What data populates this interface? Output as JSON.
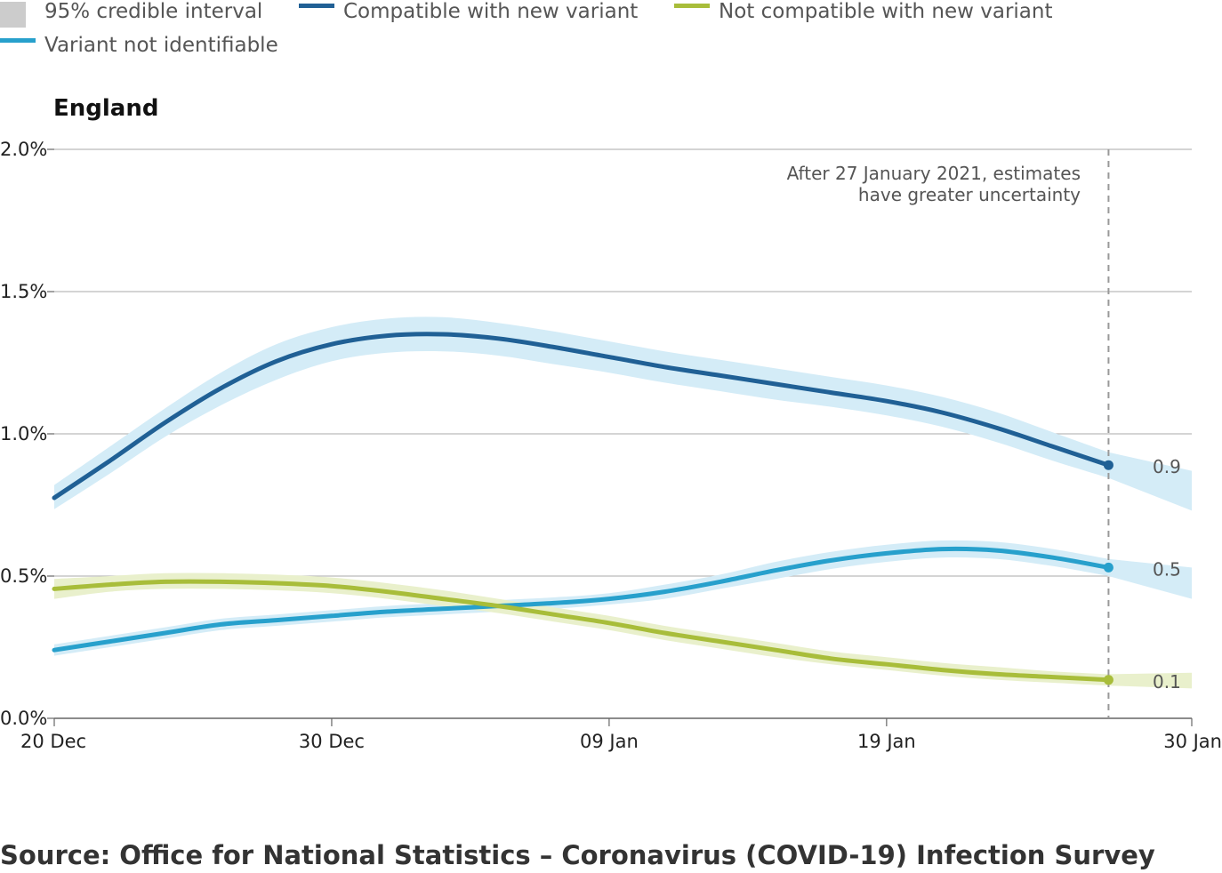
{
  "source": "Source: Office for National Statistics – Coronavirus (COVID-19) Infection Survey",
  "colors": {
    "compatible": "#206095",
    "not_compatible": "#a8bd3a",
    "not_identifiable": "#27a0cc",
    "band_blue": "#d4ecf7",
    "band_green": "#e9f0cc",
    "legend_interval": "#cccccc",
    "gridline": "#bbbbbb",
    "axis": "#666666",
    "cutoff": "#999999"
  },
  "legend": {
    "interval": "95% credible interval",
    "compatible": "Compatible with new variant",
    "not_compatible": "Not compatible with new variant",
    "not_identifiable": "Variant not identifiable"
  },
  "chart_data": {
    "type": "line",
    "title": "England",
    "x_start": "2020-12-20",
    "x_end": "2021-01-30",
    "x_ticks": [
      "20 Dec",
      "30 Dec",
      "09 Jan",
      "19 Jan",
      "30 Jan"
    ],
    "x_tick_dates": [
      "2020-12-20",
      "2020-12-30",
      "2021-01-09",
      "2021-01-19",
      "2021-01-30"
    ],
    "ylim": [
      0,
      2.0
    ],
    "y_ticks": [
      "0.0%",
      "0.5%",
      "1.0%",
      "1.5%",
      "2.0%"
    ],
    "y_tick_values": [
      0,
      0.5,
      1.0,
      1.5,
      2.0
    ],
    "grid": true,
    "cutoff": {
      "date": "2021-01-27",
      "text": [
        "After 27 January 2021, estimates",
        "have greater uncertainty"
      ]
    },
    "series": [
      {
        "name": "Compatible with new variant",
        "key": "compatible",
        "x": [
          "2020-12-20",
          "2020-12-22",
          "2020-12-24",
          "2020-12-26",
          "2020-12-28",
          "2020-12-30",
          "2021-01-01",
          "2021-01-03",
          "2021-01-05",
          "2021-01-07",
          "2021-01-09",
          "2021-01-11",
          "2021-01-13",
          "2021-01-15",
          "2021-01-17",
          "2021-01-19",
          "2021-01-21",
          "2021-01-23",
          "2021-01-25",
          "2021-01-27"
        ],
        "y": [
          0.775,
          0.905,
          1.04,
          1.16,
          1.255,
          1.315,
          1.345,
          1.35,
          1.335,
          1.305,
          1.27,
          1.235,
          1.205,
          1.175,
          1.145,
          1.115,
          1.075,
          1.02,
          0.955,
          0.89
        ],
        "lower": [
          0.735,
          0.86,
          0.99,
          1.1,
          1.19,
          1.255,
          1.285,
          1.29,
          1.275,
          1.245,
          1.215,
          1.18,
          1.15,
          1.12,
          1.095,
          1.065,
          1.025,
          0.97,
          0.905,
          0.845
        ],
        "upper": [
          0.82,
          0.955,
          1.09,
          1.215,
          1.315,
          1.375,
          1.405,
          1.41,
          1.39,
          1.36,
          1.325,
          1.29,
          1.26,
          1.23,
          1.2,
          1.17,
          1.13,
          1.075,
          1.005,
          0.935
        ],
        "band_x": [
          "2021-01-27",
          "2021-01-30"
        ],
        "band_lower": [
          0.845,
          0.73
        ],
        "band_upper": [
          0.935,
          0.87
        ],
        "end_label": "0.9"
      },
      {
        "name": "Variant not identifiable",
        "key": "not_identifiable",
        "x": [
          "2020-12-20",
          "2020-12-22",
          "2020-12-24",
          "2020-12-26",
          "2020-12-28",
          "2020-12-30",
          "2021-01-01",
          "2021-01-03",
          "2021-01-05",
          "2021-01-07",
          "2021-01-09",
          "2021-01-11",
          "2021-01-13",
          "2021-01-15",
          "2021-01-17",
          "2021-01-19",
          "2021-01-21",
          "2021-01-23",
          "2021-01-25",
          "2021-01-27"
        ],
        "y": [
          0.24,
          0.27,
          0.3,
          0.33,
          0.345,
          0.36,
          0.375,
          0.385,
          0.395,
          0.405,
          0.42,
          0.445,
          0.48,
          0.52,
          0.555,
          0.58,
          0.595,
          0.59,
          0.565,
          0.53
        ],
        "lower": [
          0.22,
          0.25,
          0.28,
          0.31,
          0.325,
          0.34,
          0.355,
          0.365,
          0.375,
          0.385,
          0.4,
          0.42,
          0.455,
          0.49,
          0.525,
          0.55,
          0.565,
          0.56,
          0.535,
          0.5
        ],
        "upper": [
          0.26,
          0.29,
          0.32,
          0.35,
          0.365,
          0.38,
          0.395,
          0.405,
          0.415,
          0.425,
          0.44,
          0.47,
          0.505,
          0.55,
          0.585,
          0.61,
          0.625,
          0.62,
          0.595,
          0.56
        ],
        "band_x": [
          "2021-01-27",
          "2021-01-30"
        ],
        "band_lower": [
          0.5,
          0.42
        ],
        "band_upper": [
          0.56,
          0.53
        ],
        "end_label": "0.5"
      },
      {
        "name": "Not compatible with new variant",
        "key": "not_compatible",
        "x": [
          "2020-12-20",
          "2020-12-22",
          "2020-12-24",
          "2020-12-26",
          "2020-12-28",
          "2020-12-30",
          "2021-01-01",
          "2021-01-03",
          "2021-01-05",
          "2021-01-07",
          "2021-01-09",
          "2021-01-11",
          "2021-01-13",
          "2021-01-15",
          "2021-01-17",
          "2021-01-19",
          "2021-01-21",
          "2021-01-23",
          "2021-01-25",
          "2021-01-27"
        ],
        "y": [
          0.455,
          0.47,
          0.48,
          0.48,
          0.475,
          0.465,
          0.445,
          0.42,
          0.395,
          0.365,
          0.335,
          0.3,
          0.27,
          0.24,
          0.21,
          0.19,
          0.17,
          0.155,
          0.145,
          0.135
        ],
        "lower": [
          0.42,
          0.445,
          0.455,
          0.455,
          0.45,
          0.44,
          0.42,
          0.395,
          0.37,
          0.34,
          0.31,
          0.275,
          0.245,
          0.215,
          0.19,
          0.17,
          0.15,
          0.135,
          0.125,
          0.115
        ],
        "upper": [
          0.49,
          0.5,
          0.51,
          0.51,
          0.505,
          0.495,
          0.475,
          0.45,
          0.42,
          0.39,
          0.36,
          0.325,
          0.295,
          0.265,
          0.235,
          0.215,
          0.195,
          0.18,
          0.165,
          0.155
        ],
        "band_x": [
          "2021-01-27",
          "2021-01-30"
        ],
        "band_lower": [
          0.115,
          0.105
        ],
        "band_upper": [
          0.155,
          0.16
        ],
        "end_label": "0.1"
      }
    ]
  }
}
